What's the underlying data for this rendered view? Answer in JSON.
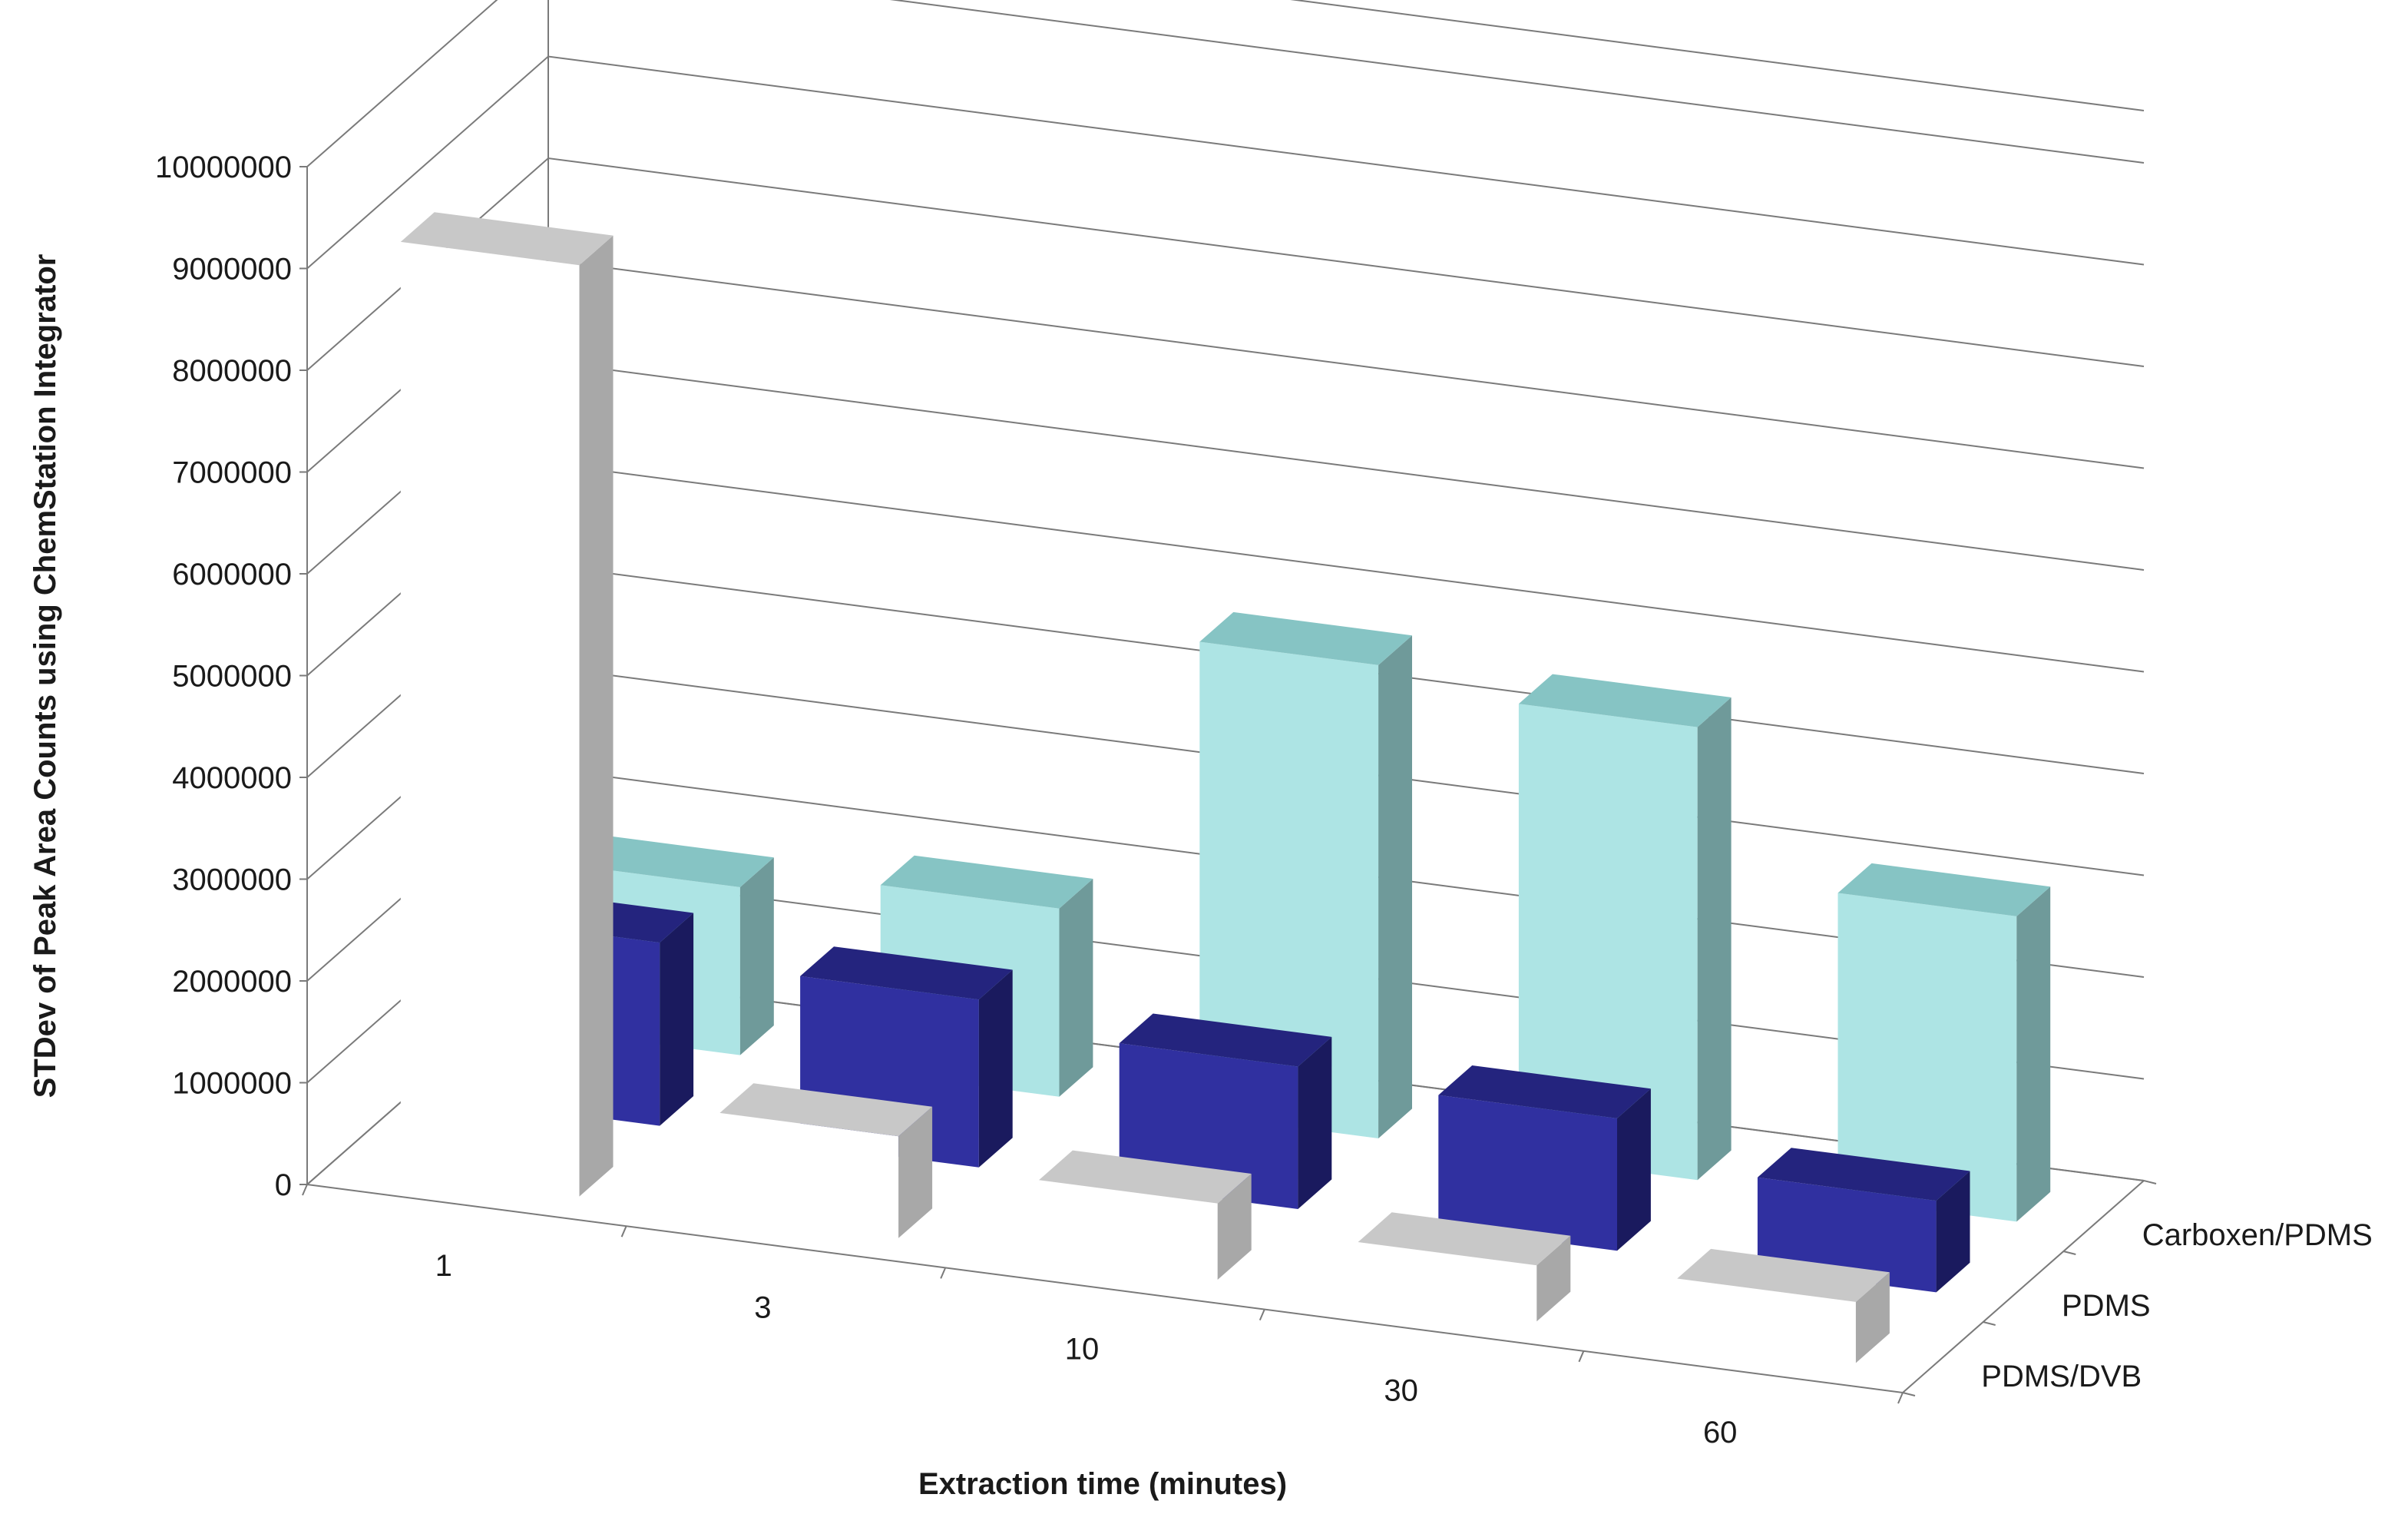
{
  "chart_data": {
    "type": "bar",
    "subtype": "3d-column",
    "title": "",
    "xlabel": "Extraction time (minutes)",
    "ylabel": "STDev of Peak Area Counts using ChemStation Integrator",
    "categories": [
      "1",
      "3",
      "10",
      "30",
      "60"
    ],
    "y_ticks": [
      "0",
      "1000000",
      "2000000",
      "3000000",
      "4000000",
      "5000000",
      "6000000",
      "7000000",
      "8000000",
      "9000000",
      "10000000"
    ],
    "ylim": [
      0,
      10000000
    ],
    "grid": true,
    "series": [
      {
        "name": "PDMS/DVB",
        "values": [
          9150000,
          1000000,
          750000,
          550000,
          600000
        ],
        "color": "#ffffff",
        "top_color": "#c8c8c8",
        "side_color": "#a8a8a8"
      },
      {
        "name": "PDMS",
        "values": [
          1800000,
          1650000,
          1400000,
          1300000,
          900000
        ],
        "color": "#3030a0",
        "top_color": "#24247e",
        "side_color": "#1a1a5e"
      },
      {
        "name": "Carboxen/PDMS",
        "values": [
          1650000,
          1850000,
          4650000,
          4450000,
          3000000
        ],
        "color": "#ade4e4",
        "top_color": "#86c4c4",
        "side_color": "#6f9a9a"
      }
    ],
    "legend": "depth-axis"
  }
}
